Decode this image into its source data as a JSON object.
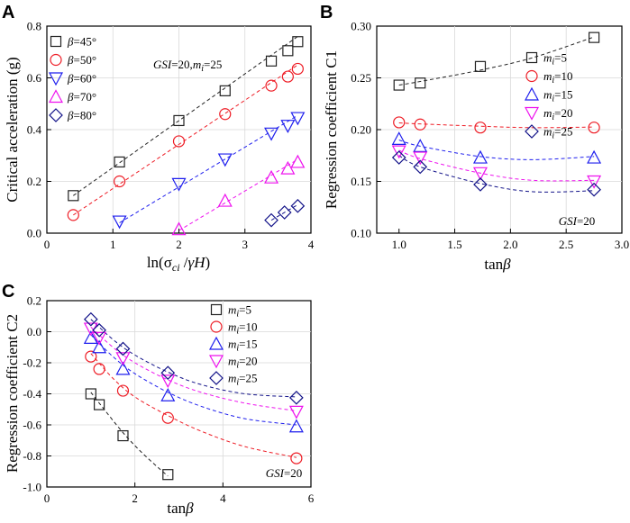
{
  "colors": {
    "black": "#222222",
    "red": "#ee1c25",
    "blue": "#1f1fee",
    "magenta": "#ee11ee",
    "navy": "#111188"
  },
  "chart_data": [
    {
      "type": "scatter",
      "panel": "A",
      "xlabel": "ln(σci /γH)",
      "ylabel": "Critical acceleration (g)",
      "xlim": [
        0,
        4
      ],
      "ylim": [
        0,
        0.8
      ],
      "xticks": [
        "0",
        "1",
        "2",
        "3",
        "4"
      ],
      "yticks": [
        "0.0",
        "0.2",
        "0.4",
        "0.6",
        "0.8"
      ],
      "annotation": "GSI=20,mi=25",
      "legend_position": "top-left",
      "series": [
        {
          "name": "β=45°",
          "marker": "square",
          "color": "#222222",
          "x": [
            0.4,
            1.1,
            2.0,
            2.7,
            3.4,
            3.65,
            3.8
          ],
          "y": [
            0.145,
            0.275,
            0.435,
            0.55,
            0.665,
            0.705,
            0.74
          ],
          "fit": [
            [
              0.4,
              0.145
            ],
            [
              3.8,
              0.76
            ]
          ]
        },
        {
          "name": "β=50°",
          "marker": "circle",
          "color": "#ee1c25",
          "x": [
            0.4,
            1.1,
            2.0,
            2.7,
            3.4,
            3.65,
            3.8
          ],
          "y": [
            0.07,
            0.2,
            0.355,
            0.46,
            0.57,
            0.605,
            0.635
          ],
          "fit": [
            [
              0.4,
              0.07
            ],
            [
              3.8,
              0.65
            ]
          ]
        },
        {
          "name": "β=60°",
          "marker": "triangle-down",
          "color": "#1f1fee",
          "x": [
            1.1,
            2.0,
            2.7,
            3.4,
            3.65,
            3.8
          ],
          "y": [
            0.045,
            0.19,
            0.285,
            0.385,
            0.415,
            0.445
          ],
          "fit": [
            [
              1.1,
              0.04
            ],
            [
              3.8,
              0.455
            ]
          ]
        },
        {
          "name": "β=70°",
          "marker": "triangle-up",
          "color": "#ee11ee",
          "x": [
            2.0,
            2.7,
            3.4,
            3.65,
            3.8
          ],
          "y": [
            0.015,
            0.125,
            0.215,
            0.25,
            0.275
          ],
          "fit": [
            [
              2.0,
              0.01
            ],
            [
              3.8,
              0.285
            ]
          ]
        },
        {
          "name": "β=80°",
          "marker": "diamond",
          "color": "#111188",
          "x": [
            3.4,
            3.6,
            3.8
          ],
          "y": [
            0.05,
            0.08,
            0.105
          ],
          "fit": [
            [
              3.4,
              0.05
            ],
            [
              3.8,
              0.11
            ]
          ]
        }
      ]
    },
    {
      "type": "scatter",
      "panel": "B",
      "xlabel": "tanβ",
      "ylabel": "Regression coefficient C1",
      "xlim": [
        0.8,
        3.0
      ],
      "ylim": [
        0.1,
        0.3
      ],
      "xticks": [
        "1.0",
        "1.5",
        "2.0",
        "2.5",
        "3.0"
      ],
      "yticks": [
        "0.10",
        "0.15",
        "0.20",
        "0.25",
        "0.30"
      ],
      "annotation": "GSI=20",
      "legend_position": "right",
      "series": [
        {
          "name": "mi=5",
          "marker": "square",
          "color": "#222222",
          "x": [
            1.0,
            1.19,
            1.73,
            2.75
          ],
          "y": [
            0.243,
            0.245,
            0.261,
            0.289
          ],
          "fit": [
            [
              1.0,
              0.243
            ],
            [
              1.19,
              0.2465
            ],
            [
              1.73,
              0.2575
            ],
            [
              2.2,
              0.2695
            ],
            [
              2.75,
              0.2895
            ]
          ]
        },
        {
          "name": "mi=10",
          "marker": "circle",
          "color": "#ee1c25",
          "x": [
            1.0,
            1.19,
            1.73,
            2.75
          ],
          "y": [
            0.207,
            0.205,
            0.202,
            0.202
          ],
          "fit": [
            [
              1.0,
              0.2065
            ],
            [
              1.19,
              0.2055
            ],
            [
              1.73,
              0.2033
            ],
            [
              2.2,
              0.2019
            ],
            [
              2.75,
              0.2025
            ]
          ]
        },
        {
          "name": "mi=15",
          "marker": "triangle-up",
          "color": "#1f1fee",
          "x": [
            1.0,
            1.19,
            1.73,
            2.75
          ],
          "y": [
            0.191,
            0.184,
            0.173,
            0.173
          ],
          "fit": [
            [
              1.0,
              0.19
            ],
            [
              1.19,
              0.184
            ],
            [
              1.73,
              0.174
            ],
            [
              2.2,
              0.171
            ],
            [
              2.75,
              0.174
            ]
          ]
        },
        {
          "name": "mi=20",
          "marker": "triangle-down",
          "color": "#ee11ee",
          "x": [
            1.0,
            1.19,
            1.73,
            2.75
          ],
          "y": [
            0.179,
            0.173,
            0.158,
            0.15
          ],
          "fit": [
            [
              1.0,
              0.18
            ],
            [
              1.19,
              0.172
            ],
            [
              1.73,
              0.158
            ],
            [
              2.2,
              0.151
            ],
            [
              2.75,
              0.151
            ]
          ]
        },
        {
          "name": "mi=25",
          "marker": "diamond",
          "color": "#111188",
          "x": [
            1.0,
            1.19,
            1.73,
            2.75
          ],
          "y": [
            0.173,
            0.164,
            0.147,
            0.142
          ],
          "fit": [
            [
              1.0,
              0.175
            ],
            [
              1.19,
              0.164
            ],
            [
              1.73,
              0.148
            ],
            [
              2.2,
              0.14
            ],
            [
              2.75,
              0.141
            ]
          ]
        }
      ]
    },
    {
      "type": "scatter",
      "panel": "C",
      "xlabel": "tanβ",
      "ylabel": "Regression coefficient C2",
      "xlim": [
        0,
        6
      ],
      "ylim": [
        -1.0,
        0.2
      ],
      "xticks": [
        "0",
        "2",
        "4",
        "6"
      ],
      "yticks": [
        "0.2",
        "0.0",
        "-0.2",
        "-0.4",
        "-0.6",
        "-0.8",
        "-1.0"
      ],
      "annotation": "GSI=20",
      "legend_position": "top-right",
      "series": [
        {
          "name": "mi=5",
          "marker": "square",
          "color": "#222222",
          "x": [
            1.0,
            1.19,
            1.73,
            2.75
          ],
          "y": [
            -0.4,
            -0.47,
            -0.67,
            -0.92
          ],
          "fit": [
            [
              1.0,
              -0.39
            ],
            [
              1.19,
              -0.46
            ],
            [
              1.73,
              -0.65
            ],
            [
              2.2,
              -0.79
            ],
            [
              2.75,
              -0.93
            ]
          ]
        },
        {
          "name": "mi=10",
          "marker": "circle",
          "color": "#ee1c25",
          "x": [
            1.0,
            1.19,
            1.73,
            2.75,
            5.67
          ],
          "y": [
            -0.16,
            -0.24,
            -0.38,
            -0.555,
            -0.815
          ],
          "fit": [
            [
              1.0,
              -0.14
            ],
            [
              1.5,
              -0.3
            ],
            [
              2.0,
              -0.42
            ],
            [
              2.75,
              -0.54
            ],
            [
              3.5,
              -0.64
            ],
            [
              4.5,
              -0.74
            ],
            [
              5.67,
              -0.81
            ]
          ]
        },
        {
          "name": "mi=15",
          "marker": "triangle-up",
          "color": "#1f1fee",
          "x": [
            1.0,
            1.19,
            1.73,
            2.75,
            5.67
          ],
          "y": [
            -0.04,
            -0.1,
            -0.24,
            -0.41,
            -0.61
          ],
          "fit": [
            [
              1.0,
              -0.02
            ],
            [
              1.5,
              -0.16
            ],
            [
              2.0,
              -0.27
            ],
            [
              2.75,
              -0.39
            ],
            [
              3.5,
              -0.48
            ],
            [
              4.5,
              -0.56
            ],
            [
              5.67,
              -0.6
            ]
          ]
        },
        {
          "name": "mi=20",
          "marker": "triangle-down",
          "color": "#ee11ee",
          "x": [
            1.0,
            1.19,
            1.73,
            2.75,
            5.67
          ],
          "y": [
            0.02,
            -0.04,
            -0.17,
            -0.315,
            -0.515
          ],
          "fit": [
            [
              1.0,
              0.03
            ],
            [
              1.5,
              -0.1
            ],
            [
              2.0,
              -0.2
            ],
            [
              2.75,
              -0.31
            ],
            [
              3.5,
              -0.39
            ],
            [
              4.5,
              -0.46
            ],
            [
              5.67,
              -0.51
            ]
          ]
        },
        {
          "name": "mi=25",
          "marker": "diamond",
          "color": "#111188",
          "x": [
            1.0,
            1.19,
            1.73,
            2.75,
            5.67
          ],
          "y": [
            0.08,
            0.01,
            -0.11,
            -0.265,
            -0.425
          ],
          "fit": [
            [
              1.0,
              0.08
            ],
            [
              1.5,
              -0.05
            ],
            [
              2.0,
              -0.15
            ],
            [
              2.75,
              -0.26
            ],
            [
              3.5,
              -0.34
            ],
            [
              4.5,
              -0.4
            ],
            [
              5.67,
              -0.42
            ]
          ]
        }
      ]
    }
  ]
}
